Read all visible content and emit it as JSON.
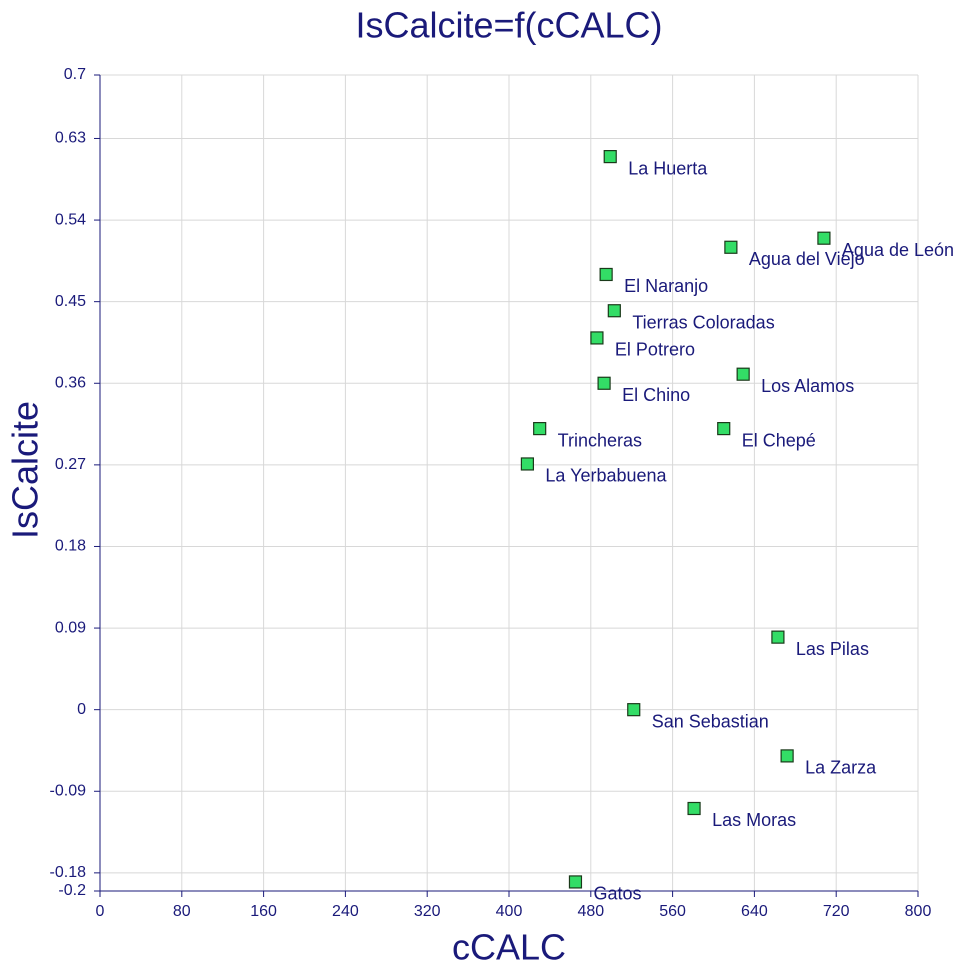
{
  "chart_data": {
    "type": "scatter",
    "title": "IsCalcite=f(cCALC)",
    "xlabel": "cCALC",
    "ylabel": "IsCalcite",
    "xlim": [
      0,
      800
    ],
    "xticks": [
      0,
      80,
      160,
      240,
      320,
      400,
      480,
      560,
      640,
      720,
      800
    ],
    "ylim": [
      -0.2,
      0.7
    ],
    "yticks": [
      0.7,
      0.63,
      0.54,
      0.45,
      0.36,
      0.27,
      0.18,
      0.09,
      0,
      -0.09,
      -0.18,
      -0.2
    ],
    "grid": true,
    "color": "#33dd66",
    "text_color": "#1a1a7a",
    "labels": [
      "La Huerta",
      "Agua de León",
      "Agua del Viejo",
      "El Naranjo",
      "Tierras Coloradas",
      "El Potrero",
      "El Chino",
      "Los Alamos",
      "Trincheras",
      "El Chepé",
      "La Yerbabuena",
      "Las Pilas",
      "San Sebastian",
      "La Zarza",
      "Las Moras",
      "Gatos"
    ],
    "x": [
      499,
      708,
      617,
      495,
      503,
      486,
      493,
      629,
      430,
      610,
      418,
      663,
      522,
      672,
      581,
      465
    ],
    "y": [
      0.61,
      0.52,
      0.51,
      0.48,
      0.44,
      0.41,
      0.36,
      0.37,
      0.31,
      0.31,
      0.271,
      0.08,
      0,
      -0.051,
      -0.109,
      -0.19
    ]
  }
}
